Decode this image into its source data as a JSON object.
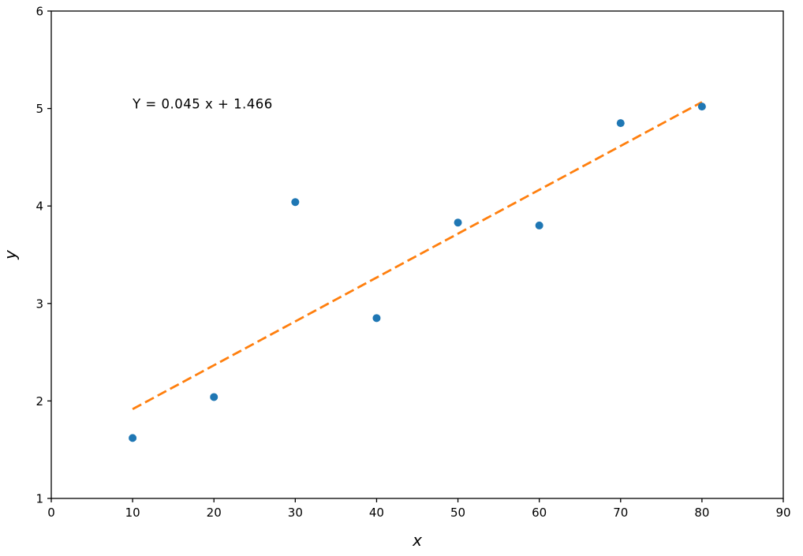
{
  "chart_data": {
    "type": "scatter",
    "title": "",
    "xlabel": "x",
    "ylabel": "y",
    "xlim": [
      0,
      90
    ],
    "ylim": [
      1,
      6
    ],
    "xticks": [
      0,
      10,
      20,
      30,
      40,
      50,
      60,
      70,
      80,
      90
    ],
    "yticks": [
      1,
      2,
      3,
      4,
      5,
      6
    ],
    "grid": false,
    "legend_position": "none",
    "points": {
      "x": [
        10,
        20,
        30,
        40,
        50,
        60,
        70,
        80
      ],
      "y": [
        1.62,
        2.04,
        4.04,
        2.85,
        3.83,
        3.8,
        4.85,
        5.02
      ]
    },
    "fit_line": {
      "equation_label": "Y = 0.045 x + 1.466",
      "slope": 0.045,
      "intercept": 1.466,
      "x_start": 10,
      "x_end": 80,
      "style": "dashed"
    },
    "annotation": {
      "text": "Y = 0.045 x + 1.466",
      "x": 10,
      "y": 5.0
    },
    "colors": {
      "points": "#1f77b4",
      "line": "#ff7f0e",
      "axes": "#000000",
      "background": "#ffffff"
    }
  }
}
